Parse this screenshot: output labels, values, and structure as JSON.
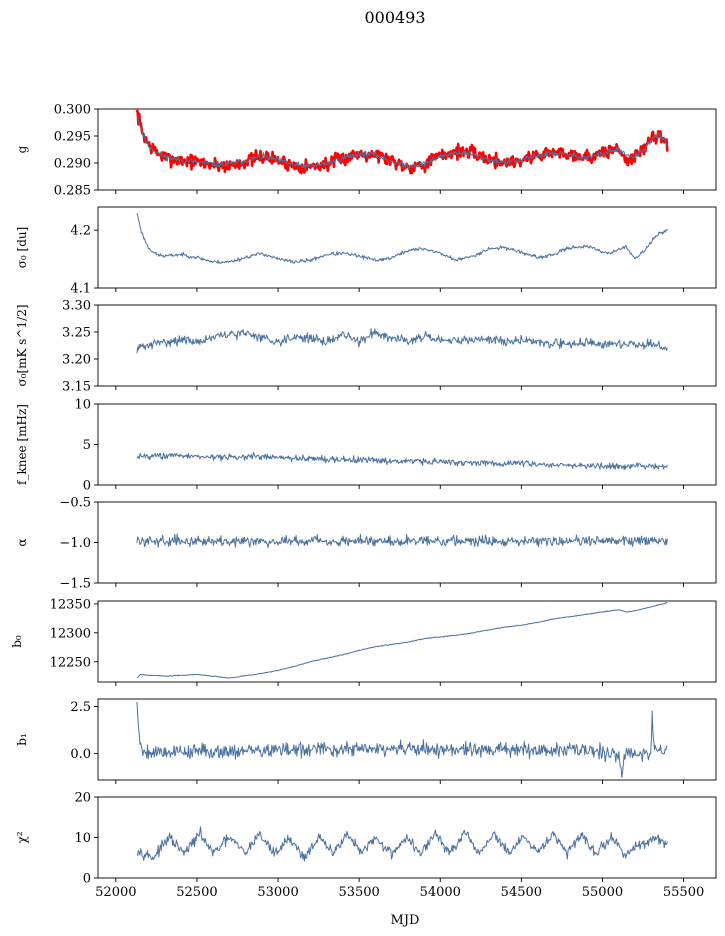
{
  "figure": {
    "title": "000493",
    "xlabel": "MJD",
    "x_ticks": [
      52000,
      52500,
      53000,
      53500,
      54000,
      54500,
      55000,
      55500
    ],
    "xlim": [
      51890,
      55700
    ]
  },
  "chart_data": [
    {
      "type": "line",
      "ylabel": "g",
      "ylim": [
        0.285,
        0.3
      ],
      "y_ticks": [
        0.285,
        0.29,
        0.295,
        0.3
      ],
      "y_tick_labels": [
        "0.285",
        "0.290",
        "0.295",
        "0.300"
      ],
      "x": [
        52130,
        52160,
        52200,
        52250,
        52300,
        52400,
        52500,
        52600,
        52700,
        52800,
        52900,
        53000,
        53100,
        53200,
        53300,
        53400,
        53500,
        53600,
        53700,
        53800,
        53900,
        54000,
        54100,
        54200,
        54300,
        54400,
        54500,
        54600,
        54700,
        54800,
        54900,
        55000,
        55050,
        55100,
        55150,
        55200,
        55250,
        55300,
        55350,
        55400
      ],
      "series": [
        {
          "values": [
            0.2995,
            0.296,
            0.2935,
            0.292,
            0.291,
            0.2905,
            0.2902,
            0.2897,
            0.2895,
            0.2903,
            0.2912,
            0.2905,
            0.2895,
            0.2893,
            0.2898,
            0.2908,
            0.2918,
            0.2917,
            0.2905,
            0.2893,
            0.2898,
            0.2913,
            0.2922,
            0.2918,
            0.2907,
            0.2901,
            0.2905,
            0.2915,
            0.292,
            0.2917,
            0.2911,
            0.2917,
            0.2925,
            0.2925,
            0.2905,
            0.291,
            0.2925,
            0.2945,
            0.2955,
            0.2935
          ],
          "color": "#ff0000",
          "linewidth": 2.6,
          "noise": 0.0009,
          "seed": 7
        },
        {
          "values": [
            0.2992,
            0.2958,
            0.2932,
            0.292,
            0.2912,
            0.2905,
            0.2902,
            0.2898,
            0.2897,
            0.2905,
            0.2912,
            0.2905,
            0.2896,
            0.2894,
            0.2899,
            0.2909,
            0.2917,
            0.2915,
            0.2903,
            0.2894,
            0.2898,
            0.2912,
            0.292,
            0.2916,
            0.2906,
            0.2901,
            0.2905,
            0.2914,
            0.2918,
            0.2915,
            0.291,
            0.2916,
            0.2922,
            0.2925,
            0.2912,
            0.2912,
            0.2923,
            0.2942,
            0.2952,
            0.2935
          ],
          "color": "#4c72a0",
          "linewidth": 1,
          "noise": 0.0004,
          "seed": 11
        }
      ]
    },
    {
      "type": "line",
      "ylabel": "σ₀ [du]",
      "ylim": [
        4.1,
        4.24
      ],
      "y_ticks": [
        4.1,
        4.2
      ],
      "y_tick_labels": [
        "4.1",
        "4.2"
      ],
      "x": [
        52130,
        52160,
        52200,
        52250,
        52300,
        52400,
        52500,
        52600,
        52700,
        52800,
        52900,
        53000,
        53100,
        53200,
        53300,
        53400,
        53500,
        53600,
        53700,
        53800,
        53900,
        54000,
        54100,
        54200,
        54300,
        54400,
        54500,
        54600,
        54700,
        54800,
        54900,
        55000,
        55050,
        55100,
        55150,
        55200,
        55250,
        55300,
        55350,
        55400
      ],
      "series": [
        {
          "values": [
            4.23,
            4.195,
            4.17,
            4.158,
            4.155,
            4.158,
            4.153,
            4.145,
            4.145,
            4.153,
            4.16,
            4.15,
            4.145,
            4.148,
            4.158,
            4.16,
            4.155,
            4.148,
            4.152,
            4.165,
            4.168,
            4.16,
            4.148,
            4.155,
            4.168,
            4.17,
            4.162,
            4.152,
            4.158,
            4.17,
            4.172,
            4.163,
            4.16,
            4.168,
            4.17,
            4.15,
            4.162,
            4.18,
            4.195,
            4.2
          ],
          "color": "#4c72a0",
          "linewidth": 1,
          "noise": 0.0022,
          "seed": 23
        }
      ]
    },
    {
      "type": "line",
      "ylabel": "σ₀[mK s^1/2]",
      "ylim": [
        3.15,
        3.3
      ],
      "y_ticks": [
        3.15,
        3.2,
        3.25,
        3.3
      ],
      "y_tick_labels": [
        "3.15",
        "3.20",
        "3.25",
        "3.30"
      ],
      "x": [
        52130,
        52200,
        52300,
        52400,
        52500,
        52600,
        52700,
        52800,
        52900,
        53000,
        53100,
        53200,
        53300,
        53400,
        53500,
        53600,
        53700,
        53800,
        53900,
        54000,
        54100,
        54200,
        54300,
        54400,
        54500,
        54600,
        54700,
        54800,
        54900,
        55000,
        55100,
        55200,
        55300,
        55400
      ],
      "series": [
        {
          "values": [
            3.22,
            3.225,
            3.232,
            3.235,
            3.232,
            3.24,
            3.245,
            3.248,
            3.24,
            3.232,
            3.242,
            3.238,
            3.232,
            3.245,
            3.232,
            3.25,
            3.24,
            3.235,
            3.242,
            3.232,
            3.235,
            3.235,
            3.238,
            3.232,
            3.235,
            3.232,
            3.228,
            3.228,
            3.232,
            3.225,
            3.228,
            3.228,
            3.226,
            3.22
          ],
          "color": "#4c72a0",
          "linewidth": 1,
          "noise": 0.006,
          "seed": 31
        }
      ]
    },
    {
      "type": "line",
      "ylabel": "f_knee [mHz]",
      "ylim": [
        0,
        10
      ],
      "y_ticks": [
        0,
        5,
        10
      ],
      "y_tick_labels": [
        "0",
        "5",
        "10"
      ],
      "x": [
        52130,
        52300,
        52500,
        52700,
        52900,
        53100,
        53300,
        53500,
        53700,
        53900,
        54100,
        54300,
        54500,
        54700,
        54900,
        55100,
        55300,
        55400
      ],
      "series": [
        {
          "values": [
            3.6,
            3.6,
            3.55,
            3.4,
            3.5,
            3.3,
            3.2,
            3.1,
            3.0,
            2.9,
            2.8,
            2.7,
            2.6,
            2.5,
            2.4,
            2.3,
            2.3,
            2.2
          ],
          "color": "#4c72a0",
          "linewidth": 1,
          "noise": 0.28,
          "seed": 43
        }
      ]
    },
    {
      "type": "line",
      "ylabel": "α",
      "ylim": [
        -1.5,
        -0.5
      ],
      "y_ticks": [
        -1.5,
        -1.0,
        -0.5
      ],
      "y_tick_labels": [
        "−1.5",
        "−1.0",
        "−0.5"
      ],
      "x": [
        52130,
        52800,
        53500,
        54200,
        54900,
        55400
      ],
      "series": [
        {
          "values": [
            -0.98,
            -0.98,
            -0.98,
            -0.98,
            -0.98,
            -0.98
          ],
          "color": "#4c72a0",
          "linewidth": 1,
          "noise": 0.045,
          "seed": 59
        }
      ]
    },
    {
      "type": "line",
      "ylabel": "b₀",
      "ylim": [
        12215,
        12355
      ],
      "y_ticks": [
        12250,
        12300,
        12350
      ],
      "y_tick_labels": [
        "12250",
        "12300",
        "12350"
      ],
      "x": [
        52130,
        52150,
        52300,
        52500,
        52700,
        52900,
        53000,
        53100,
        53200,
        53300,
        53400,
        53500,
        53600,
        53700,
        53800,
        53900,
        54000,
        54100,
        54200,
        54300,
        54400,
        54500,
        54600,
        54700,
        54800,
        54900,
        55000,
        55050,
        55100,
        55150,
        55200,
        55300,
        55400
      ],
      "series": [
        {
          "values": [
            12222,
            12228,
            12225,
            12228,
            12222,
            12230,
            12235,
            12242,
            12250,
            12256,
            12262,
            12270,
            12276,
            12280,
            12284,
            12290,
            12293,
            12296,
            12300,
            12305,
            12310,
            12313,
            12318,
            12324,
            12328,
            12332,
            12336,
            12338,
            12340,
            12336,
            12338,
            12345,
            12352
          ],
          "color": "#4c72a0",
          "linewidth": 1,
          "noise": 0.5,
          "seed": 67
        }
      ]
    },
    {
      "type": "line",
      "ylabel": "b₁",
      "ylim": [
        -1.4,
        2.9
      ],
      "y_ticks": [
        0.0,
        2.5
      ],
      "y_tick_labels": [
        "0.0",
        "2.5"
      ],
      "x": [
        52130,
        52145,
        52160,
        52200,
        52800,
        53500,
        54200,
        54900,
        55100,
        55120,
        55140,
        55300,
        55305,
        55320,
        55400
      ],
      "series": [
        {
          "values": [
            2.7,
            0.9,
            0.2,
            0.1,
            0.15,
            0.25,
            0.2,
            0.2,
            0.0,
            -1.2,
            0.0,
            0.1,
            2.4,
            0.1,
            0.2
          ],
          "color": "#4c72a0",
          "linewidth": 1,
          "noise": 0.28,
          "seed": 79
        }
      ]
    },
    {
      "type": "line",
      "ylabel": "χ²",
      "ylim": [
        0,
        20
      ],
      "y_ticks": [
        0,
        10,
        20
      ],
      "y_tick_labels": [
        "0",
        "10",
        "20"
      ],
      "x": [
        52130,
        52230,
        52330,
        52420,
        52520,
        52600,
        52700,
        52800,
        52880,
        52980,
        53070,
        53160,
        53250,
        53340,
        53420,
        53520,
        53600,
        53700,
        53790,
        53880,
        53970,
        54060,
        54150,
        54240,
        54330,
        54420,
        54510,
        54600,
        54690,
        54780,
        54870,
        54960,
        55050,
        55140,
        55230,
        55320,
        55400
      ],
      "series": [
        {
          "values": [
            7,
            5,
            10,
            6,
            11,
            6,
            10,
            6,
            11,
            6,
            10,
            5,
            10,
            6,
            11,
            6,
            10,
            6,
            10,
            6,
            11,
            6,
            11,
            6,
            11,
            6,
            10,
            6,
            11,
            6,
            11,
            6,
            10,
            6,
            8,
            10,
            8
          ],
          "color": "#4c72a0",
          "linewidth": 1,
          "noise": 0.9,
          "seed": 97
        }
      ]
    }
  ]
}
